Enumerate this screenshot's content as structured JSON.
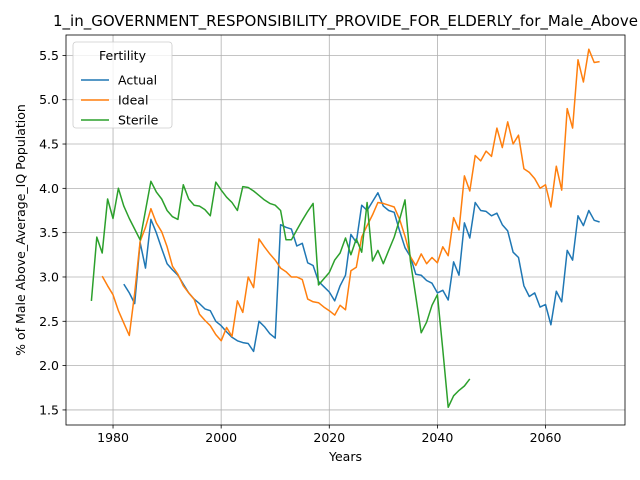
{
  "chart_data": {
    "type": "line",
    "title": "1_in_GOVERNMENT_RESPONSIBILITY_PROVIDE_FOR_ELDERLY_for_Male_Above",
    "xlabel": "Years",
    "ylabel": "% of Male Above_Average_IQ Population",
    "xlim": [
      1971.3,
      2074.7
    ],
    "ylim": [
      1.33,
      5.73
    ],
    "xticks": [
      1980,
      2000,
      2020,
      2040,
      2060
    ],
    "yticks": [
      1.5,
      2.0,
      2.5,
      3.0,
      3.5,
      4.0,
      4.5,
      5.0,
      5.5
    ],
    "xtick_labels": [
      "1980",
      "2000",
      "2020",
      "2040",
      "2060"
    ],
    "ytick_labels": [
      "1.5",
      "2.0",
      "2.5",
      "3.0",
      "3.5",
      "4.0",
      "4.5",
      "5.0",
      "5.5"
    ],
    "grid": true,
    "legend": {
      "title": "Fertility",
      "position": "top-left"
    },
    "series": [
      {
        "name": "Actual",
        "color": "#1f77b4",
        "x": [
          1982,
          1983,
          1984,
          1985,
          1986,
          1987,
          1988,
          1989,
          1990,
          1991,
          1992,
          1993,
          1994,
          1995,
          1996,
          1997,
          1998,
          1999,
          2000,
          2001,
          2002,
          2003,
          2004,
          2005,
          2006,
          2007,
          2008,
          2009,
          2010,
          2011,
          2012,
          2013,
          2014,
          2015,
          2016,
          2017,
          2018,
          2019,
          2020,
          2021,
          2022,
          2023,
          2024,
          2025,
          2026,
          2027,
          2028,
          2029,
          2030,
          2031,
          2032,
          2033,
          2034,
          2035,
          2036,
          2037,
          2038,
          2039,
          2040,
          2041,
          2042,
          2043,
          2044,
          2045,
          2046,
          2047,
          2048,
          2049,
          2050,
          2051,
          2052,
          2053,
          2054,
          2055,
          2056,
          2057,
          2058,
          2059,
          2060,
          2061,
          2062,
          2063,
          2064,
          2065,
          2066,
          2067,
          2068,
          2069,
          2070
        ],
        "values": [
          2.92,
          2.82,
          2.7,
          3.39,
          3.1,
          3.65,
          3.5,
          3.32,
          3.15,
          3.08,
          3.02,
          2.92,
          2.82,
          2.75,
          2.7,
          2.64,
          2.62,
          2.5,
          2.45,
          2.38,
          2.32,
          2.28,
          2.26,
          2.25,
          2.16,
          2.5,
          2.44,
          2.36,
          2.31,
          3.59,
          3.56,
          3.54,
          3.35,
          3.38,
          3.16,
          3.13,
          2.95,
          2.89,
          2.83,
          2.73,
          2.9,
          3.02,
          3.48,
          3.39,
          3.81,
          3.75,
          3.85,
          3.95,
          3.8,
          3.75,
          3.73,
          3.52,
          3.33,
          3.23,
          3.03,
          3.02,
          2.96,
          2.93,
          2.82,
          2.85,
          2.74,
          3.17,
          3.02,
          3.61,
          3.44,
          3.84,
          3.75,
          3.74,
          3.69,
          3.72,
          3.59,
          3.52,
          3.28,
          3.22,
          2.9,
          2.78,
          2.82,
          2.66,
          2.69,
          2.46,
          2.84,
          2.72,
          3.3,
          3.19,
          3.69,
          3.58,
          3.75,
          3.64,
          3.62
        ]
      },
      {
        "name": "Ideal",
        "color": "#ff7f0e",
        "x": [
          1978,
          1979,
          1980,
          1981,
          1982,
          1983,
          1984,
          1985,
          1986,
          1987,
          1988,
          1989,
          1990,
          1991,
          1992,
          1993,
          1994,
          1995,
          1996,
          1997,
          1998,
          1999,
          2000,
          2001,
          2002,
          2003,
          2004,
          2005,
          2006,
          2007,
          2008,
          2009,
          2010,
          2011,
          2012,
          2013,
          2014,
          2015,
          2016,
          2017,
          2018,
          2019,
          2020,
          2021,
          2022,
          2023,
          2024,
          2025,
          2026,
          2027,
          2028,
          2029,
          2030,
          2031,
          2032,
          2033,
          2034,
          2035,
          2036,
          2037,
          2038,
          2039,
          2040,
          2041,
          2042,
          2043,
          2044,
          2045,
          2046,
          2047,
          2048,
          2049,
          2050,
          2051,
          2052,
          2053,
          2054,
          2055,
          2056,
          2057,
          2058,
          2059,
          2060,
          2061,
          2062,
          2063,
          2064,
          2065,
          2066,
          2067,
          2068,
          2069,
          2070
        ],
        "values": [
          3.01,
          2.9,
          2.8,
          2.62,
          2.48,
          2.34,
          2.82,
          3.4,
          3.56,
          3.77,
          3.61,
          3.51,
          3.34,
          3.12,
          3.03,
          2.9,
          2.82,
          2.75,
          2.58,
          2.51,
          2.45,
          2.35,
          2.28,
          2.43,
          2.33,
          2.73,
          2.6,
          3.0,
          2.88,
          3.43,
          3.34,
          3.26,
          3.19,
          3.1,
          3.06,
          3.0,
          3.0,
          2.97,
          2.75,
          2.72,
          2.71,
          2.66,
          2.62,
          2.57,
          2.68,
          2.63,
          3.07,
          3.11,
          3.45,
          3.58,
          3.7,
          3.84,
          3.83,
          3.81,
          3.79,
          3.65,
          3.46,
          3.23,
          3.13,
          3.26,
          3.15,
          3.22,
          3.16,
          3.34,
          3.24,
          3.67,
          3.53,
          4.14,
          3.97,
          4.37,
          4.31,
          4.42,
          4.36,
          4.68,
          4.46,
          4.75,
          4.5,
          4.6,
          4.22,
          4.18,
          4.11,
          4.0,
          4.04,
          3.79,
          4.25,
          3.98,
          4.9,
          4.68,
          5.45,
          5.2,
          5.57,
          5.42,
          5.43
        ]
      },
      {
        "name": "Sterile",
        "color": "#2ca02c",
        "x": [
          1976,
          1977,
          1978,
          1979,
          1980,
          1981,
          1982,
          1983,
          1984,
          1985,
          1986,
          1987,
          1988,
          1989,
          1990,
          1991,
          1992,
          1993,
          1994,
          1995,
          1996,
          1997,
          1998,
          1999,
          2000,
          2001,
          2002,
          2003,
          2004,
          2005,
          2006,
          2007,
          2008,
          2009,
          2010,
          2011,
          2012,
          2013,
          2014,
          2015,
          2016,
          2017,
          2018,
          2019,
          2020,
          2021,
          2022,
          2023,
          2024,
          2025,
          2026,
          2027,
          2028,
          2029,
          2030,
          2031,
          2032,
          2033,
          2034,
          2035,
          2036,
          2037,
          2038,
          2039,
          2040,
          2041,
          2042,
          2043,
          2044,
          2045,
          2046
        ],
        "values": [
          2.73,
          3.45,
          3.27,
          3.88,
          3.66,
          4.0,
          3.8,
          3.66,
          3.54,
          3.42,
          3.75,
          4.08,
          3.96,
          3.88,
          3.75,
          3.68,
          3.65,
          4.04,
          3.88,
          3.81,
          3.8,
          3.76,
          3.69,
          4.07,
          3.98,
          3.9,
          3.84,
          3.75,
          4.02,
          4.01,
          3.97,
          3.92,
          3.87,
          3.83,
          3.81,
          3.75,
          3.42,
          3.42,
          3.53,
          3.64,
          3.74,
          3.83,
          2.91,
          2.98,
          3.05,
          3.19,
          3.27,
          3.44,
          3.25,
          3.43,
          3.28,
          3.84,
          3.18,
          3.3,
          3.15,
          3.3,
          3.45,
          3.65,
          3.87,
          3.18,
          2.78,
          2.37,
          2.49,
          2.68,
          2.8,
          2.18,
          1.53,
          1.66,
          1.72,
          1.77,
          1.85
        ]
      }
    ]
  }
}
